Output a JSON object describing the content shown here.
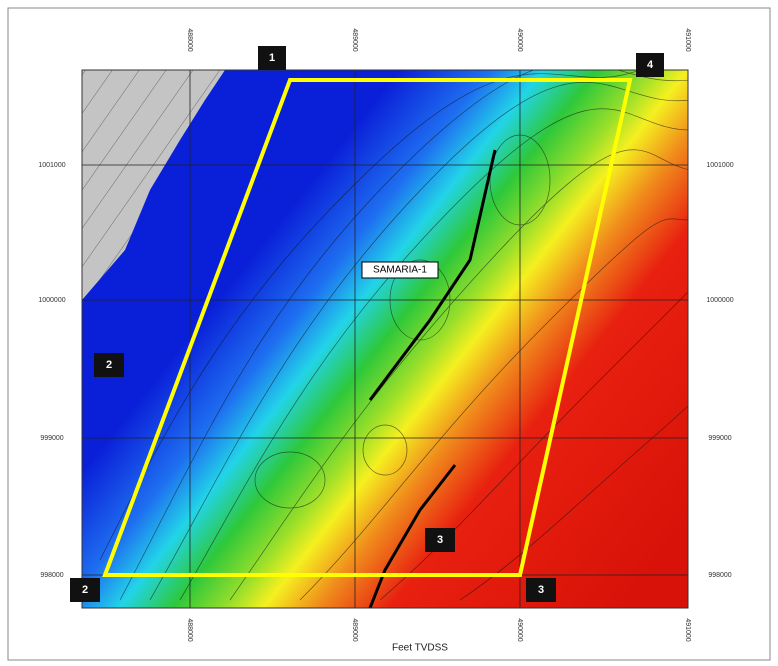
{
  "map": {
    "well_label": "SAMARIA-1",
    "axis_label": "Feet TVDSS",
    "corner_labels": [
      "1",
      "4",
      "2",
      "2",
      "3",
      "3"
    ],
    "y_ticks": [
      "1001000",
      "1000000",
      "999000",
      "998000"
    ],
    "x_ticks": [
      "488000",
      "489000",
      "490000",
      "491000"
    ]
  }
}
